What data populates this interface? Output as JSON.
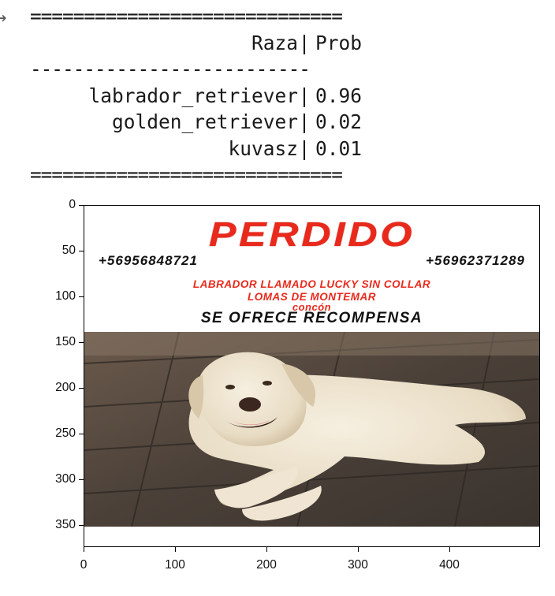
{
  "output_prompt_icon": "output-arrow-icon",
  "console": {
    "separator_top": "=============================",
    "header": {
      "col1": "Raza",
      "col2": "Prob"
    },
    "separator_mid": "--------------------------",
    "rows": [
      {
        "breed": "labrador_retriever",
        "prob": "0.96"
      },
      {
        "breed": "golden_retriever",
        "prob": "0.02"
      },
      {
        "breed": "kuvasz",
        "prob": "0.01"
      }
    ],
    "separator_bottom": "============================="
  },
  "poster": {
    "title": "PERDIDO",
    "phone1": "+56956848721",
    "phone2": "+56962371289",
    "line1": "LABRADOR LLAMADO LUCKY SIN COLLAR",
    "line2": "LOMAS DE MONTEMAR",
    "line3": "concón",
    "reward": "SE OFRECE RECOMPENSA",
    "accent_color": "#e8291c"
  },
  "axes": {
    "y_ticks": [
      "0",
      "50",
      "100",
      "150",
      "200",
      "250",
      "300",
      "350"
    ],
    "x_ticks": [
      "0",
      "100",
      "200",
      "300",
      "400"
    ]
  }
}
